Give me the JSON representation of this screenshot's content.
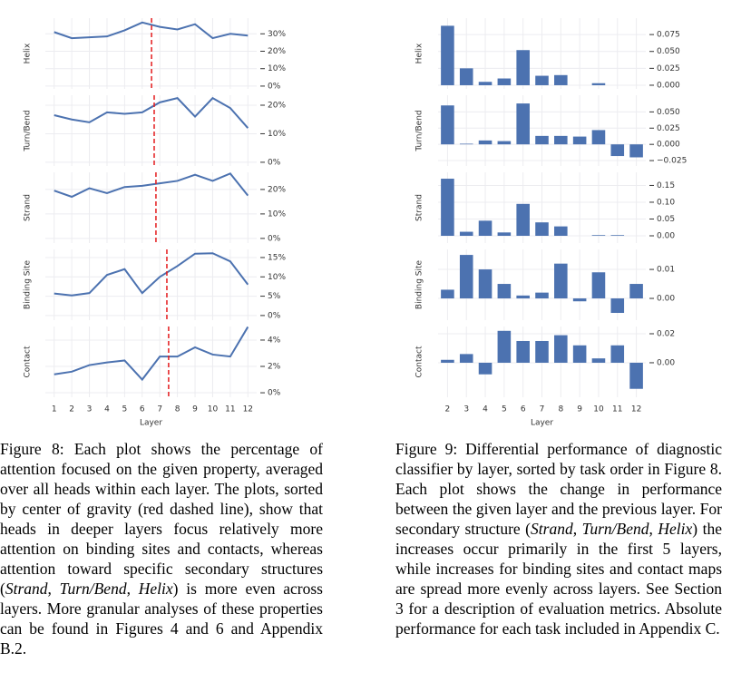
{
  "chart_data": [
    {
      "type": "line",
      "color": "#4c72b0",
      "marker_color": "#e41a1c",
      "grid": true,
      "xlabel": "Layer",
      "categories": [
        "1",
        "2",
        "3",
        "4",
        "5",
        "6",
        "7",
        "8",
        "9",
        "10",
        "11",
        "12"
      ],
      "panels": [
        {
          "ylabel": "Helix",
          "values": [
            31,
            27.5,
            28,
            28.5,
            32,
            36.5,
            34,
            32.5,
            35.5,
            27.5,
            30,
            29
          ],
          "center_of_gravity": 6.53,
          "ylim": [
            -1.6,
            39
          ],
          "yticks": [
            {
              "value": 0,
              "label": "0%"
            },
            {
              "value": 10,
              "label": "10%"
            },
            {
              "value": 20,
              "label": "20%"
            },
            {
              "value": 30,
              "label": "30%"
            }
          ]
        },
        {
          "ylabel": "Turn/Bend",
          "values": [
            16.5,
            15,
            14,
            17.5,
            17,
            17.5,
            21,
            22.5,
            16,
            22.5,
            19,
            12
          ],
          "center_of_gravity": 6.68,
          "ylim": [
            -1.3,
            23.5
          ],
          "yticks": [
            {
              "value": 0,
              "label": "0%"
            },
            {
              "value": 10,
              "label": "10%"
            },
            {
              "value": 20,
              "label": "20%"
            }
          ]
        },
        {
          "ylabel": "Strand",
          "values": [
            19.5,
            17,
            20.5,
            18.5,
            21,
            21.5,
            22.5,
            23.5,
            26,
            23.5,
            26.5,
            17.5
          ],
          "center_of_gravity": 6.78,
          "ylim": [
            -1.9,
            27
          ],
          "yticks": [
            {
              "value": 0,
              "label": "0%"
            },
            {
              "value": 10,
              "label": "10%"
            },
            {
              "value": 20,
              "label": "20%"
            }
          ]
        },
        {
          "ylabel": "Binding Site",
          "values": [
            5.7,
            5.2,
            5.8,
            10.5,
            12,
            5.8,
            10,
            12.8,
            16,
            16.1,
            14,
            8
          ],
          "center_of_gravity": 7.4,
          "ylim": [
            -1.2,
            17.1
          ],
          "yticks": [
            {
              "value": 0,
              "label": "0%"
            },
            {
              "value": 5,
              "label": "5%"
            },
            {
              "value": 10,
              "label": "10%"
            },
            {
              "value": 15,
              "label": "15%"
            }
          ]
        },
        {
          "ylabel": "Contact",
          "values": [
            1.4,
            1.6,
            2.1,
            2.3,
            2.45,
            1.0,
            2.75,
            2.75,
            3.45,
            2.9,
            2.75,
            5.0
          ],
          "center_of_gravity": 7.5,
          "ylim": [
            -0.34,
            5.03
          ],
          "yticks": [
            {
              "value": 0,
              "label": "0%"
            },
            {
              "value": 2,
              "label": "2%"
            },
            {
              "value": 4,
              "label": "4%"
            }
          ]
        }
      ]
    },
    {
      "type": "bar",
      "color": "#4c72b0",
      "grid": true,
      "xlabel": "Layer",
      "categories": [
        "2",
        "3",
        "4",
        "5",
        "6",
        "7",
        "8",
        "9",
        "10",
        "11",
        "12"
      ],
      "panels": [
        {
          "ylabel": "Helix",
          "values": [
            0.088,
            0.025,
            0.005,
            0.01,
            0.052,
            0.014,
            0.015,
            0,
            0.003,
            0,
            0
          ],
          "ylim": [
            -0.0054,
            0.0993
          ],
          "yticks": [
            {
              "value": 0,
              "label": "0.000"
            },
            0.025,
            {
              "value": 0.05,
              "label": "0.050"
            },
            0.075
          ]
        },
        {
          "ylabel": "Turn/Bend",
          "values": [
            0.06,
            0.001,
            0.006,
            0.005,
            0.063,
            0.013,
            0.013,
            0.012,
            0.022,
            -0.018,
            -0.02
          ],
          "ylim": [
            -0.0333,
            0.0757
          ],
          "yticks": [
            {
              "value": -0.025,
              "label": "−0.025"
            },
            {
              "value": 0,
              "label": "0.000"
            },
            0.025,
            {
              "value": 0.05,
              "label": "0.050"
            }
          ]
        },
        {
          "ylabel": "Strand",
          "values": [
            0.17,
            0.012,
            0.045,
            0.01,
            0.095,
            0.04,
            0.028,
            0,
            0.002,
            0.002,
            0
          ],
          "ylim": [
            -0.0216,
            0.189
          ],
          "yticks": [
            {
              "value": 0,
              "label": "0.00"
            },
            0.05,
            {
              "value": 0.1,
              "label": "0.10"
            },
            0.15
          ]
        },
        {
          "ylabel": "Binding Site",
          "values": [
            0.003,
            0.015,
            0.01,
            0.005,
            0.001,
            0.002,
            0.012,
            -0.001,
            0.009,
            -0.005,
            0.005
          ],
          "ylim": [
            -0.0075,
            0.0169
          ],
          "yticks": [
            {
              "value": 0,
              "label": "0.00"
            },
            0.01
          ]
        },
        {
          "ylabel": "Contact",
          "values": [
            0.002,
            0.006,
            -0.008,
            0.022,
            0.015,
            0.015,
            0.019,
            0.012,
            0.003,
            0.012,
            -0.018
          ],
          "ylim": [
            -0.0238,
            0.025
          ],
          "yticks": [
            {
              "value": 0,
              "label": "0.00"
            },
            0.02
          ]
        }
      ]
    }
  ],
  "captions": [
    [
      "Figure 8: Each plot shows the percentage of attention focused on the given property, averaged over all heads within each layer. The plots, sorted by center of gravity (red dashed line), show that heads in deeper layers focus relatively more attention on binding sites and contacts, whereas attention toward specific secondary structures (",
      "Strand",
      ", ",
      "Turn/Bend",
      ", ",
      "Helix",
      ") is more even across layers. More granular analyses of these properties can be found in Figures 4 and 6 and Appendix B.2."
    ],
    [
      "Figure 9: Differential performance of diagnostic classifier by layer, sorted by task order in Figure 8. Each plot shows the change in performance between the given layer and the previous layer. For secondary structure (",
      "Strand",
      ", ",
      "Turn/Bend",
      ", ",
      "Helix",
      ") the increases occur primarily in the first 5 layers, while increases for binding sites and contact maps are spread more evenly across layers. See Section 3 for a description of evaluation metrics. Absolute performance for each task included in Appendix C."
    ]
  ]
}
